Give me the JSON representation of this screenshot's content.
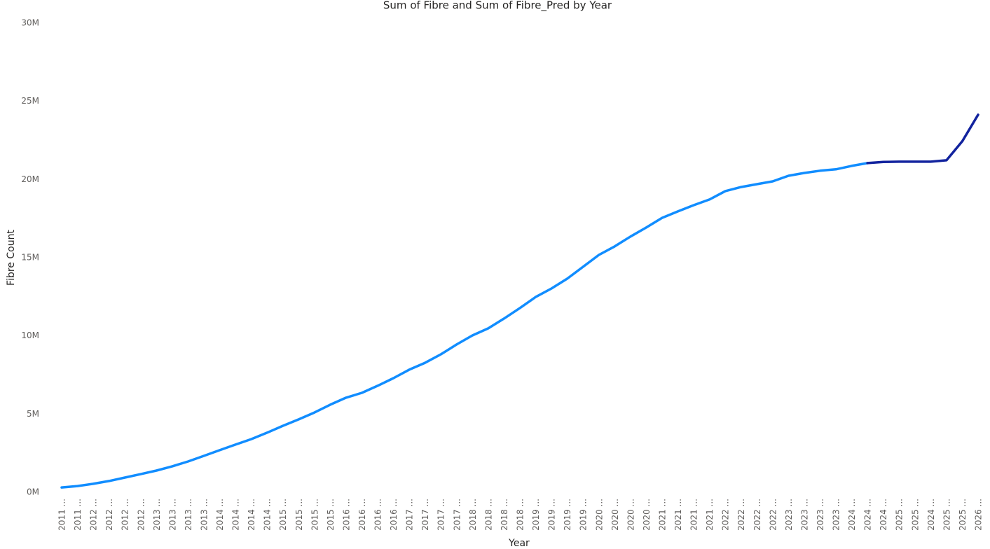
{
  "chart_data": {
    "type": "line",
    "title": "Sum of Fibre and Sum of Fibre_Pred by Year",
    "xlabel": "Year",
    "ylabel": "Fibre Count",
    "categories": [
      "2011 ...",
      "2011 ...",
      "2012 ...",
      "2012 ...",
      "2012 ...",
      "2012 ...",
      "2013 ...",
      "2013 ...",
      "2013 ...",
      "2013 ...",
      "2014 ...",
      "2014 ...",
      "2014 ...",
      "2014 ...",
      "2015 ...",
      "2015 ...",
      "2015 ...",
      "2015 ...",
      "2016 ...",
      "2016 ...",
      "2016 ...",
      "2016 ...",
      "2017 ...",
      "2017 ...",
      "2017 ...",
      "2017 ...",
      "2018 ...",
      "2018 ...",
      "2018 ...",
      "2018 ...",
      "2019 ...",
      "2019 ...",
      "2019 ...",
      "2019 ...",
      "2020 ...",
      "2020 ...",
      "2020 ...",
      "2020 ...",
      "2021 ...",
      "2021 ...",
      "2021 ...",
      "2021 ...",
      "2022 ...",
      "2022 ...",
      "2022 ...",
      "2022 ...",
      "2023 ...",
      "2023 ...",
      "2023 ...",
      "2023 ...",
      "2024 ...",
      "2024 ...",
      "2024 ...",
      "2025 ...",
      "2025 ...",
      "2024 ...",
      "2025 ...",
      "2025 ...",
      "2026 ..."
    ],
    "series": [
      {
        "name": "Sum of Fibre",
        "color": "#118dff",
        "values": [
          310000,
          400000,
          540000,
          720000,
          940000,
          1160000,
          1390000,
          1660000,
          1970000,
          2330000,
          2690000,
          3050000,
          3400000,
          3810000,
          4250000,
          4660000,
          5100000,
          5600000,
          6050000,
          6360000,
          6810000,
          7300000,
          7840000,
          8280000,
          8820000,
          9450000,
          10030000,
          10480000,
          11110000,
          11780000,
          12490000,
          13030000,
          13660000,
          14420000,
          15180000,
          15720000,
          16350000,
          16930000,
          17550000,
          17960000,
          18360000,
          18720000,
          19260000,
          19520000,
          19700000,
          19880000,
          20240000,
          20420000,
          20560000,
          20650000,
          20870000,
          21050000,
          null,
          null,
          null,
          null,
          null,
          null,
          null
        ]
      },
      {
        "name": "Sum of Fibre_Pred",
        "color": "#12239e",
        "values": [
          null,
          null,
          null,
          null,
          null,
          null,
          null,
          null,
          null,
          null,
          null,
          null,
          null,
          null,
          null,
          null,
          null,
          null,
          null,
          null,
          null,
          null,
          null,
          null,
          null,
          null,
          null,
          null,
          null,
          null,
          null,
          null,
          null,
          null,
          null,
          null,
          null,
          null,
          null,
          null,
          null,
          null,
          null,
          null,
          null,
          null,
          null,
          null,
          null,
          null,
          null,
          21050000,
          21120000,
          21140000,
          21140000,
          21140000,
          21230000,
          22440000,
          24140000
        ]
      }
    ],
    "ylim": [
      0,
      30000000
    ],
    "yticks": [
      {
        "value": 0,
        "label": "0M"
      },
      {
        "value": 5000000,
        "label": "5M"
      },
      {
        "value": 10000000,
        "label": "10M"
      },
      {
        "value": 15000000,
        "label": "15M"
      },
      {
        "value": 20000000,
        "label": "20M"
      },
      {
        "value": 25000000,
        "label": "25M"
      },
      {
        "value": 30000000,
        "label": "30M"
      }
    ],
    "grid": false
  }
}
